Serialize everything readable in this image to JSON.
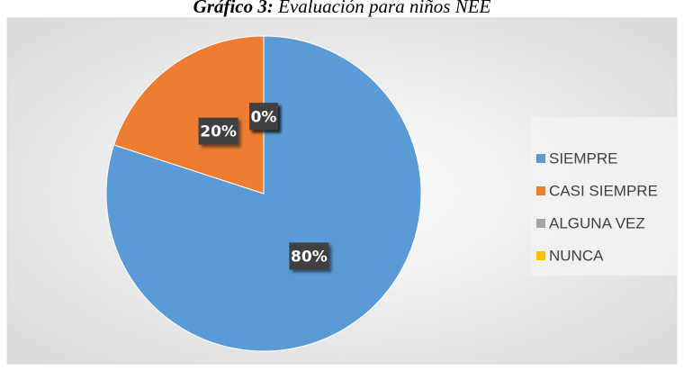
{
  "chart_data": {
    "type": "pie",
    "title_prefix": "Gráfico 3:",
    "title": "Evaluación para niños NEE",
    "categories": [
      "SIEMPRE",
      "CASI SIEMPRE",
      "ALGUNA VEZ",
      "NUNCA"
    ],
    "values": [
      80,
      20,
      0,
      0
    ],
    "value_labels": [
      "80%",
      "20%",
      "0%",
      "0%"
    ],
    "colors": [
      "#5b9bd5",
      "#ed7d31",
      "#a5a5a5",
      "#ffc000"
    ],
    "legend": "right"
  }
}
